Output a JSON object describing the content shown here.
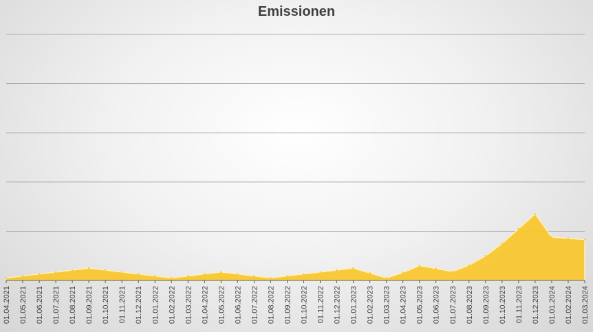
{
  "chart_data": {
    "type": "area",
    "title": "Emissionen",
    "xlabel": "",
    "ylabel": "",
    "ylim": [
      0,
      100
    ],
    "grid": true,
    "y_ticks_visible": false,
    "color": "#F8C72B",
    "categories": [
      "01.04.2021",
      "01.05.2021",
      "01.06.2021",
      "01.07.2021",
      "01.08.2021",
      "01.09.2021",
      "01.10.2021",
      "01.11.2021",
      "01.12.2021",
      "01.01.2022",
      "01.02.2022",
      "01.03.2022",
      "01.04.2022",
      "01.05.2022",
      "01.06.2022",
      "01.07.2022",
      "01.08.2022",
      "01.09.2022",
      "01.10.2022",
      "01.11.2022",
      "01.12.2022",
      "01.01.2023",
      "01.02.2023",
      "01.03.2023",
      "01.04.2023",
      "01.05.2023",
      "01.06.2023",
      "01.07.2023",
      "01.08.2023",
      "01.09.2023",
      "01.10.2023",
      "01.11.2023",
      "01.12.2023",
      "01.01.2024",
      "01.02.2024",
      "01.03.2024"
    ],
    "values": [
      1.0,
      1.8,
      2.6,
      3.4,
      4.2,
      5.0,
      4.2,
      3.4,
      2.6,
      1.8,
      1.0,
      1.8,
      2.6,
      3.4,
      2.6,
      1.8,
      1.0,
      1.8,
      2.6,
      3.4,
      4.2,
      5.0,
      3.0,
      1.0,
      3.2,
      6.0,
      4.8,
      3.6,
      6.2,
      10.0,
      15.0,
      21.0,
      27.0,
      17.6,
      17.1,
      16.6
    ]
  }
}
